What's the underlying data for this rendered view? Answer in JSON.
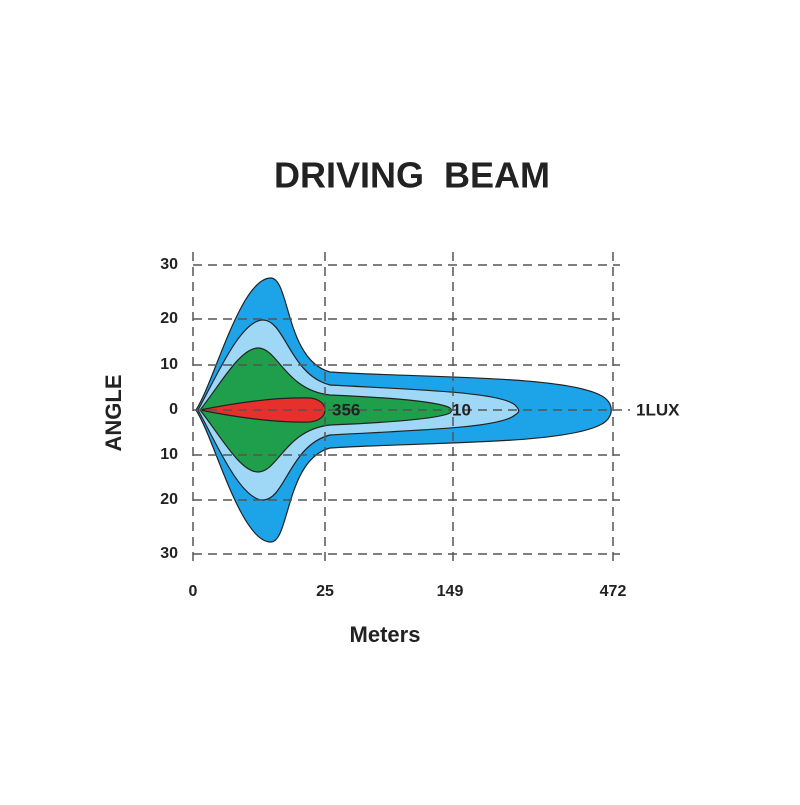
{
  "title": "DRIVING  BEAM",
  "y_axis": {
    "label": "ANGLE",
    "ticks": [
      "30",
      "20",
      "10",
      "0",
      "10",
      "20",
      "30"
    ]
  },
  "x_axis": {
    "label": "Meters",
    "ticks": [
      "0",
      "25",
      "149",
      "472"
    ]
  },
  "contour_labels": [
    "356",
    "10",
    "1LUX"
  ]
}
